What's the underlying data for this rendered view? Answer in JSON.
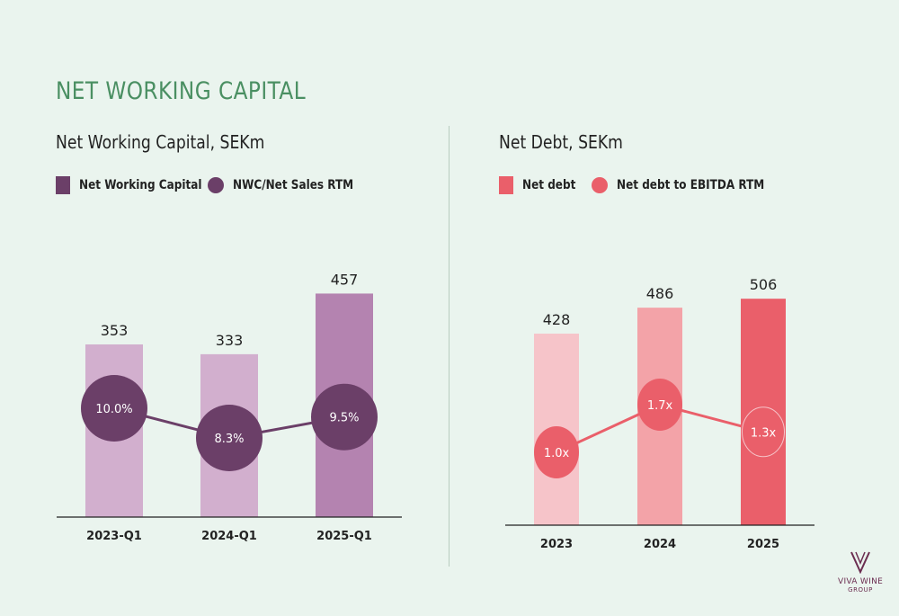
{
  "page": {
    "title": "NET WORKING CAPITAL"
  },
  "logo": {
    "name": "VIVA WINE",
    "sub": "GROUP"
  },
  "colors": {
    "accent_green": "#4a8f62",
    "nwc_bar_light": "#d2afce",
    "nwc_bar_dark": "#b483b0",
    "nwc_marker": "#6b3f68",
    "debt_bar_light": "#f6c4c9",
    "debt_bar_mid": "#f3a3a8",
    "debt_bar_dark": "#ea5f6a",
    "debt_marker": "#ea5f6a"
  },
  "chart_data": [
    {
      "type": "bar",
      "title": "Net Working Capital, SEKm",
      "categories": [
        "2023-Q1",
        "2024-Q1",
        "2025-Q1"
      ],
      "series": [
        {
          "name": "Net Working Capital",
          "type": "bar",
          "values": [
            353,
            333,
            457
          ],
          "labels": [
            "353",
            "333",
            "457"
          ]
        },
        {
          "name": "NWC/Net Sales RTM",
          "type": "line",
          "values": [
            10.0,
            8.3,
            9.5
          ],
          "labels": [
            "10.0%",
            "8.3%",
            "9.5%"
          ]
        }
      ],
      "legend": "top-left",
      "grid": false
    },
    {
      "type": "bar",
      "title": "Net Debt, SEKm",
      "categories": [
        "2023",
        "2024",
        "2025"
      ],
      "series": [
        {
          "name": "Net debt",
          "type": "bar",
          "values": [
            428,
            486,
            506
          ],
          "labels": [
            "428",
            "486",
            "506"
          ]
        },
        {
          "name": "Net debt to EBITDA RTM",
          "type": "line",
          "values": [
            1.0,
            1.7,
            1.3
          ],
          "labels": [
            "1.0x",
            "1.7x",
            "1.3x"
          ]
        }
      ],
      "legend": "top-left",
      "grid": false
    }
  ]
}
